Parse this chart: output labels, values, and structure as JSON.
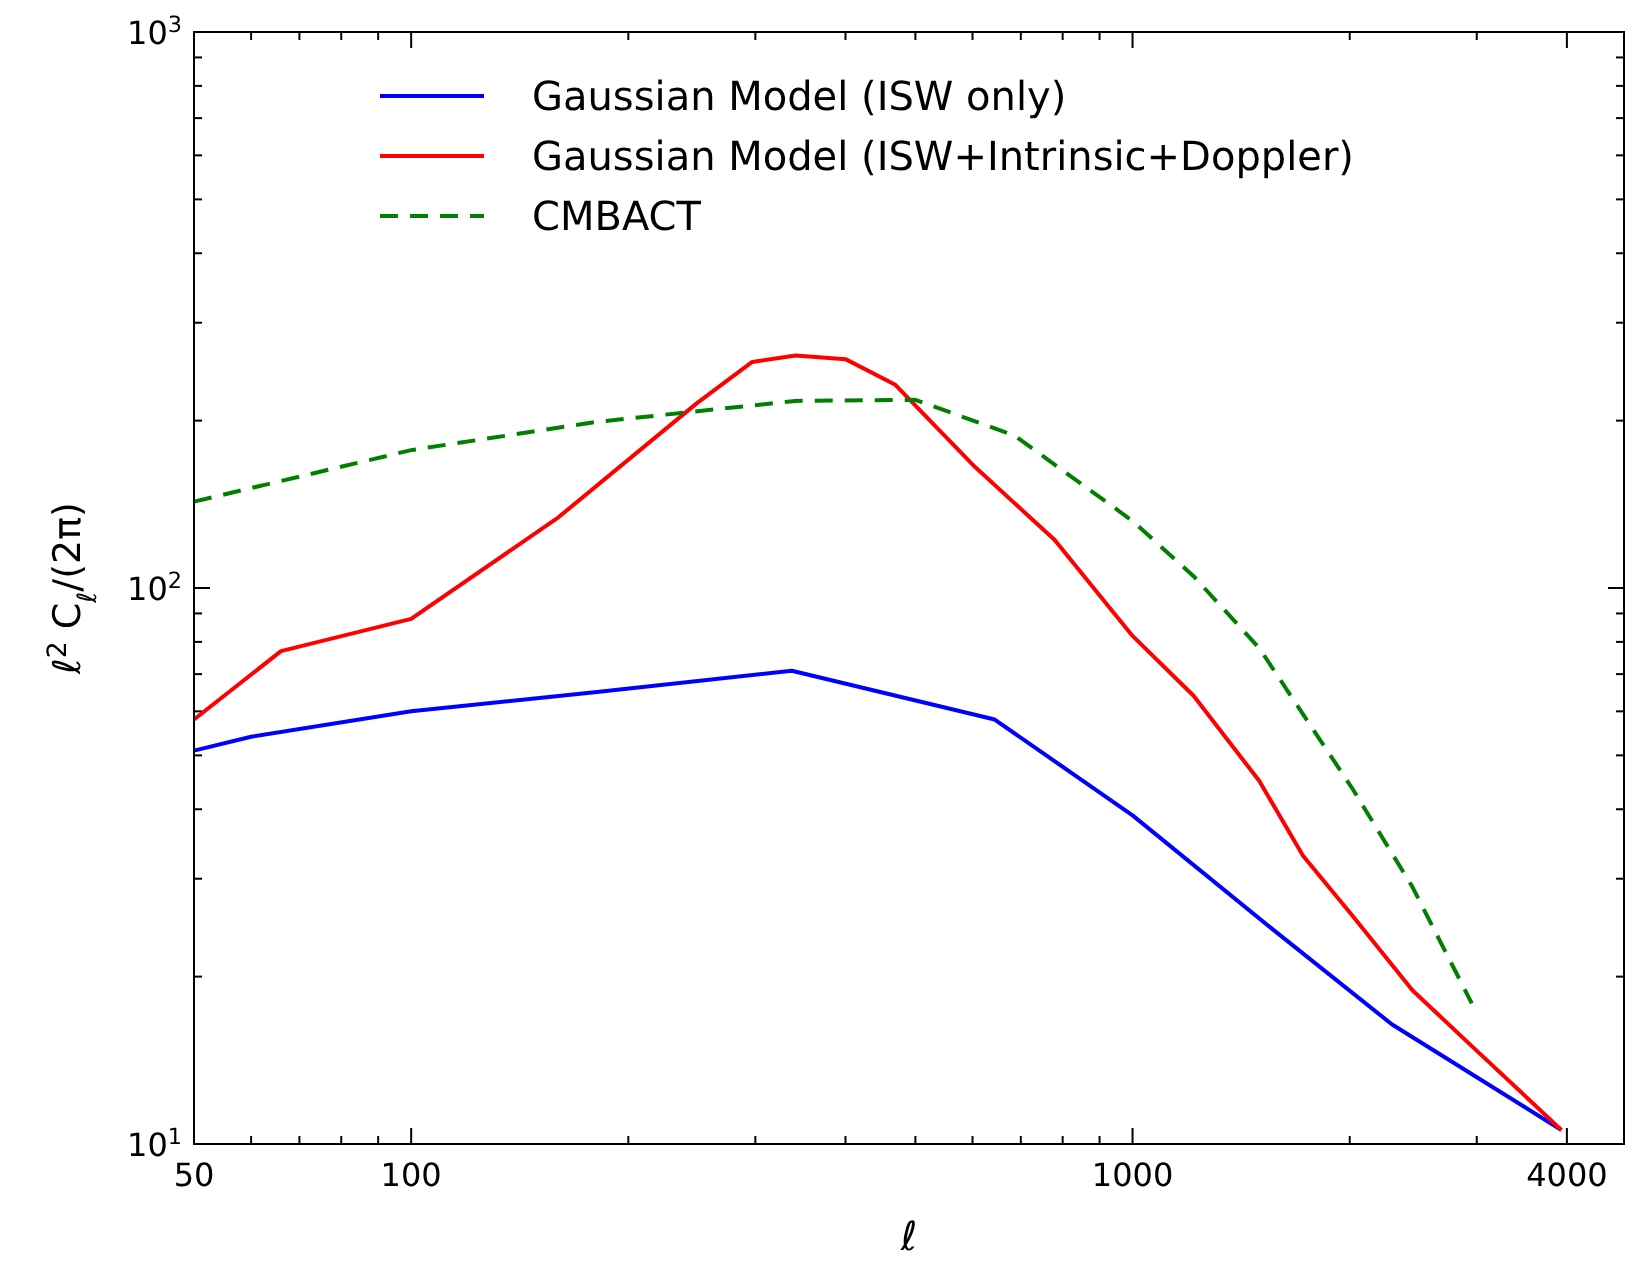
{
  "chart_data": {
    "type": "line",
    "xlabel": "ℓ",
    "ylabel": "ℓ$^{2}$ C$_{ℓ}$/(2π)",
    "log": "xy",
    "xlim": [
      50,
      4800
    ],
    "ylim": [
      10,
      1000
    ],
    "xticks": [
      50,
      {
        "value": 60,
        "label": null
      },
      {
        "value": 70,
        "label": null
      },
      {
        "value": 80,
        "label": null
      },
      {
        "value": 90,
        "label": null
      },
      100,
      {
        "value": 200,
        "label": null
      },
      {
        "value": 300,
        "label": null
      },
      {
        "value": 400,
        "label": null
      },
      {
        "value": 500,
        "label": null
      },
      {
        "value": 600,
        "label": null
      },
      {
        "value": 700,
        "label": null
      },
      {
        "value": 800,
        "label": null
      },
      {
        "value": 900,
        "label": null
      },
      1000,
      {
        "value": 2000,
        "label": null
      },
      {
        "value": 3000,
        "label": null
      },
      4000
    ],
    "yticks": [
      {
        "value": 10,
        "label": "10$^{1}$"
      },
      {
        "value": 20,
        "label": null
      },
      {
        "value": 30,
        "label": null
      },
      {
        "value": 40,
        "label": null
      },
      {
        "value": 50,
        "label": null
      },
      {
        "value": 60,
        "label": null
      },
      {
        "value": 70,
        "label": null
      },
      {
        "value": 80,
        "label": null
      },
      {
        "value": 90,
        "label": null
      },
      {
        "value": 100,
        "label": "10$^{2}$"
      },
      {
        "value": 200,
        "label": null
      },
      {
        "value": 300,
        "label": null
      },
      {
        "value": 400,
        "label": null
      },
      {
        "value": 500,
        "label": null
      },
      {
        "value": 600,
        "label": null
      },
      {
        "value": 700,
        "label": null
      },
      {
        "value": 800,
        "label": null
      },
      {
        "value": 900,
        "label": null
      },
      {
        "value": 1000,
        "label": "10$^{3}$"
      }
    ],
    "legend": "top",
    "grid": false,
    "series": [
      {
        "name": "Gaussian Model (ISW only)",
        "color": "#0000ff",
        "line_style": "solid",
        "x": [
          50,
          60,
          100,
          181,
          337,
          644,
          1000,
          1566,
          2290,
          3930
        ],
        "values": [
          51,
          54,
          60,
          65,
          71,
          58,
          39,
          24.3,
          16.4,
          10.6
        ]
      },
      {
        "name": "Gaussian Model (ISW+Intrinsic+Doppler)",
        "color": "#ff0000",
        "line_style": "solid",
        "x": [
          50,
          66,
          100,
          160,
          249,
          297,
          341,
          400,
          469,
          605,
          780,
          1000,
          1215,
          1498,
          1723,
          2019,
          2443,
          2953,
          3930
        ],
        "values": [
          58,
          77,
          88,
          134,
          215,
          255,
          262,
          258,
          232,
          165,
          122,
          82,
          64,
          45,
          33,
          25.7,
          18.9,
          15,
          10.6
        ]
      },
      {
        "name": "CMBACT",
        "color": "#007f00",
        "line_style": "dashed",
        "x": [
          50,
          100,
          181,
          341,
          500,
          686,
          1000,
          1215,
          1498,
          2019,
          2443,
          2953
        ],
        "values": [
          143,
          177,
          199,
          217,
          218,
          188,
          132,
          105,
          78,
          43.5,
          29,
          17.9
        ]
      }
    ]
  }
}
